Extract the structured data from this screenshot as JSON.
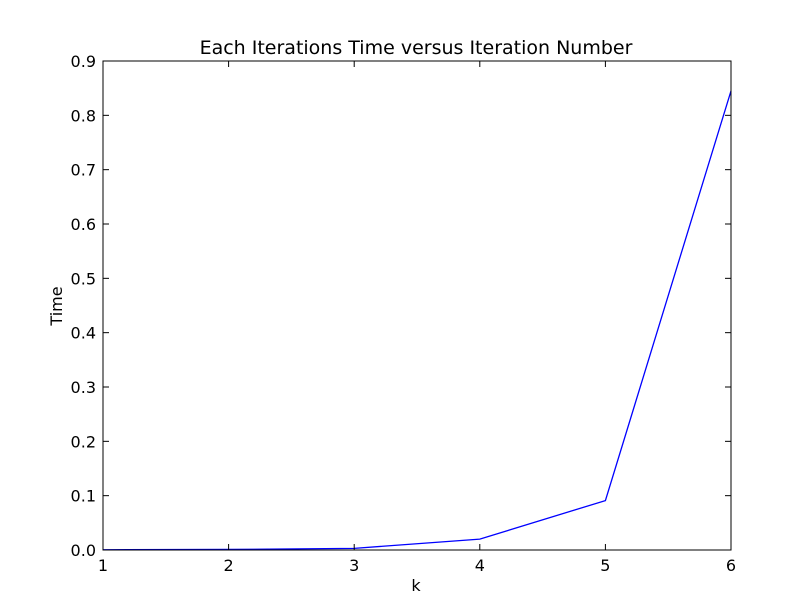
{
  "chart_data": {
    "type": "line",
    "title": "Each Iterations Time versus Iteration Number",
    "xlabel": "k",
    "ylabel": "Time",
    "xlim": [
      1,
      6
    ],
    "ylim": [
      0,
      0.9
    ],
    "xticks": [
      "1",
      "2",
      "3",
      "4",
      "5",
      "6"
    ],
    "yticks": [
      "0.0",
      "0.1",
      "0.2",
      "0.3",
      "0.4",
      "0.5",
      "0.6",
      "0.7",
      "0.8",
      "0.9"
    ],
    "grid": false,
    "series": [
      {
        "color": "#0000ff",
        "x": [
          1,
          2,
          3,
          4,
          5,
          6
        ],
        "values": [
          0.0005,
          0.001,
          0.003,
          0.02,
          0.091,
          0.845
        ]
      }
    ]
  }
}
